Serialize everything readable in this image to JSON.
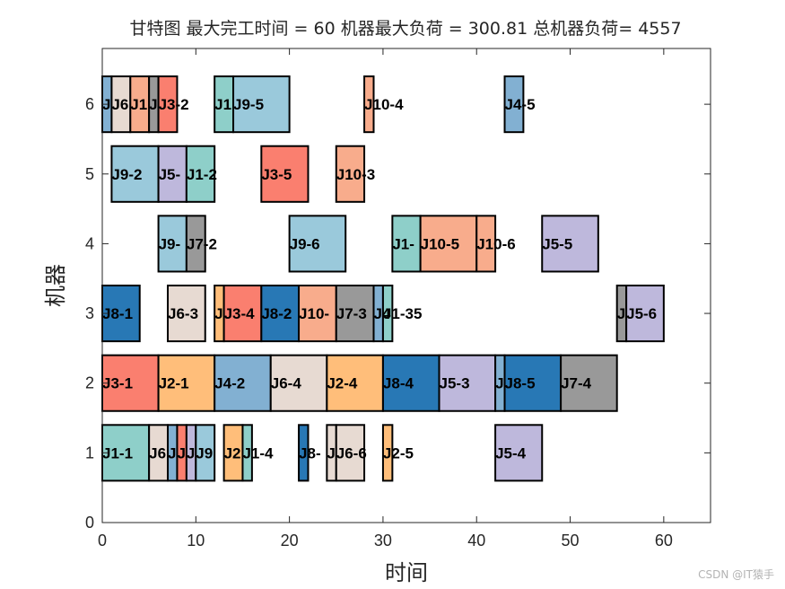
{
  "chart_data": {
    "type": "gantt",
    "title": "甘特图 最大完工时间 = 60 机器最大负荷 = 300.81 总机器负荷= 4557",
    "xlabel": "时间",
    "ylabel": "机器",
    "xlim": [
      0,
      65
    ],
    "ylim": [
      0,
      6.8
    ],
    "xticks": [
      "0",
      "10",
      "20",
      "30",
      "40",
      "50",
      "60"
    ],
    "yticks": [
      "0",
      "1",
      "2",
      "3",
      "4",
      "5",
      "6"
    ],
    "job_colors": {
      "J1": "#8ecfc9",
      "J2": "#ffbe7a",
      "J3": "#fa7f6f",
      "J4": "#82b0d2",
      "J5": "#beb8dc",
      "J6": "#e7dad2",
      "J7": "#999999",
      "J8": "#2878b5",
      "J9": "#9ac9db",
      "J10": "#f8ac8c"
    },
    "tasks": [
      {
        "machine": 1,
        "job": "J1",
        "start": 0,
        "end": 5,
        "label": "J1-1"
      },
      {
        "machine": 1,
        "job": "J6",
        "start": 5,
        "end": 7,
        "label": "J6"
      },
      {
        "machine": 1,
        "job": "J4",
        "start": 7,
        "end": 8,
        "label": "J"
      },
      {
        "machine": 1,
        "job": "J3",
        "start": 8,
        "end": 9,
        "label": "J"
      },
      {
        "machine": 1,
        "job": "J5",
        "start": 9,
        "end": 10,
        "label": "J"
      },
      {
        "machine": 1,
        "job": "J9",
        "start": 10,
        "end": 12,
        "label": "J9"
      },
      {
        "machine": 1,
        "job": "J2",
        "start": 13,
        "end": 15,
        "label": "J2"
      },
      {
        "machine": 1,
        "job": "J1",
        "start": 15,
        "end": 16,
        "label": "J1-4"
      },
      {
        "machine": 1,
        "job": "J8",
        "start": 21,
        "end": 22,
        "label": "J8-"
      },
      {
        "machine": 1,
        "job": "J6",
        "start": 24,
        "end": 25,
        "label": "J"
      },
      {
        "machine": 1,
        "job": "J6",
        "start": 25,
        "end": 28,
        "label": "J6-6"
      },
      {
        "machine": 1,
        "job": "J2",
        "start": 30,
        "end": 31,
        "label": "J2-5"
      },
      {
        "machine": 1,
        "job": "J5",
        "start": 42,
        "end": 47,
        "label": "J5-4"
      },
      {
        "machine": 2,
        "job": "J3",
        "start": 0,
        "end": 6,
        "label": "J3-1"
      },
      {
        "machine": 2,
        "job": "J2",
        "start": 6,
        "end": 12,
        "label": "J2-1"
      },
      {
        "machine": 2,
        "job": "J4",
        "start": 12,
        "end": 18,
        "label": "J4-2"
      },
      {
        "machine": 2,
        "job": "J6",
        "start": 18,
        "end": 24,
        "label": "J6-4"
      },
      {
        "machine": 2,
        "job": "J2",
        "start": 24,
        "end": 30,
        "label": "J2-4"
      },
      {
        "machine": 2,
        "job": "J8",
        "start": 30,
        "end": 36,
        "label": "J8-4"
      },
      {
        "machine": 2,
        "job": "J5",
        "start": 36,
        "end": 42,
        "label": "J5-3"
      },
      {
        "machine": 2,
        "job": "J4",
        "start": 42,
        "end": 43,
        "label": "J"
      },
      {
        "machine": 2,
        "job": "J8",
        "start": 43,
        "end": 49,
        "label": "J8-5"
      },
      {
        "machine": 2,
        "job": "J7",
        "start": 49,
        "end": 55,
        "label": "J7-4"
      },
      {
        "machine": 3,
        "job": "J8",
        "start": 0,
        "end": 4,
        "label": "J8-1"
      },
      {
        "machine": 3,
        "job": "J6",
        "start": 7,
        "end": 11,
        "label": "J6-3"
      },
      {
        "machine": 3,
        "job": "J2",
        "start": 12,
        "end": 13,
        "label": "J"
      },
      {
        "machine": 3,
        "job": "J3",
        "start": 13,
        "end": 17,
        "label": "J3-4"
      },
      {
        "machine": 3,
        "job": "J8",
        "start": 17,
        "end": 21,
        "label": "J8-2"
      },
      {
        "machine": 3,
        "job": "J10",
        "start": 21,
        "end": 25,
        "label": "J10-"
      },
      {
        "machine": 3,
        "job": "J7",
        "start": 25,
        "end": 29,
        "label": "J7-3"
      },
      {
        "machine": 3,
        "job": "J4",
        "start": 29,
        "end": 30,
        "label": "J4"
      },
      {
        "machine": 3,
        "job": "J1",
        "start": 30,
        "end": 31,
        "label": "J1-35"
      },
      {
        "machine": 3,
        "job": "J7",
        "start": 55,
        "end": 56,
        "label": "J"
      },
      {
        "machine": 3,
        "job": "J5",
        "start": 56,
        "end": 60,
        "label": "J5-6"
      },
      {
        "machine": 4,
        "job": "J9",
        "start": 6,
        "end": 9,
        "label": "J9-"
      },
      {
        "machine": 4,
        "job": "J7",
        "start": 9,
        "end": 11,
        "label": "J7-2"
      },
      {
        "machine": 4,
        "job": "J9",
        "start": 20,
        "end": 26,
        "label": "J9-6"
      },
      {
        "machine": 4,
        "job": "J1",
        "start": 31,
        "end": 34,
        "label": "J1-"
      },
      {
        "machine": 4,
        "job": "J10",
        "start": 34,
        "end": 40,
        "label": "J10-5"
      },
      {
        "machine": 4,
        "job": "J10",
        "start": 40,
        "end": 42,
        "label": "J10-6"
      },
      {
        "machine": 4,
        "job": "J5",
        "start": 47,
        "end": 53,
        "label": "J5-5"
      },
      {
        "machine": 5,
        "job": "J9",
        "start": 1,
        "end": 6,
        "label": "J9-2"
      },
      {
        "machine": 5,
        "job": "J5",
        "start": 6,
        "end": 9,
        "label": "J5-"
      },
      {
        "machine": 5,
        "job": "J1",
        "start": 9,
        "end": 12,
        "label": "J1-2"
      },
      {
        "machine": 5,
        "job": "J3",
        "start": 17,
        "end": 22,
        "label": "J3-5"
      },
      {
        "machine": 5,
        "job": "J10",
        "start": 25,
        "end": 28,
        "label": "J10-3"
      },
      {
        "machine": 6,
        "job": "J4",
        "start": 0,
        "end": 1,
        "label": "J"
      },
      {
        "machine": 6,
        "job": "J6",
        "start": 1,
        "end": 3,
        "label": "J6"
      },
      {
        "machine": 6,
        "job": "J10",
        "start": 3,
        "end": 5,
        "label": "J1"
      },
      {
        "machine": 6,
        "job": "J7",
        "start": 5,
        "end": 6,
        "label": "J"
      },
      {
        "machine": 6,
        "job": "J3",
        "start": 6,
        "end": 8,
        "label": "J3-2"
      },
      {
        "machine": 6,
        "job": "J1",
        "start": 12,
        "end": 14,
        "label": "J1"
      },
      {
        "machine": 6,
        "job": "J9",
        "start": 14,
        "end": 20,
        "label": "J9-5"
      },
      {
        "machine": 6,
        "job": "J10",
        "start": 28,
        "end": 29,
        "label": "J10-4"
      },
      {
        "machine": 6,
        "job": "J4",
        "start": 43,
        "end": 45,
        "label": "J4-5"
      }
    ]
  },
  "watermark": "CSDN @IT猿手"
}
